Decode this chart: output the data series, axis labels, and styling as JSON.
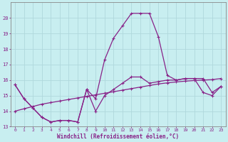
{
  "xlabel": "Windchill (Refroidissement éolien,°C)",
  "background_color": "#c8eef0",
  "grid_color": "#b0d8dc",
  "line_color": "#882288",
  "x_values": [
    0,
    1,
    2,
    3,
    4,
    5,
    6,
    7,
    8,
    9,
    10,
    11,
    12,
    13,
    14,
    15,
    16,
    17,
    18,
    19,
    20,
    21,
    22,
    23
  ],
  "line1": [
    15.7,
    14.8,
    14.2,
    13.6,
    13.3,
    13.4,
    13.4,
    13.3,
    15.4,
    14.0,
    15.0,
    15.4,
    15.8,
    16.2,
    16.2,
    15.8,
    15.9,
    16.0,
    16.0,
    16.1,
    16.1,
    15.2,
    15.0,
    15.6
  ],
  "line2": [
    15.7,
    14.8,
    14.2,
    13.6,
    13.3,
    13.4,
    13.4,
    13.3,
    15.4,
    14.8,
    17.3,
    18.7,
    19.5,
    20.3,
    20.3,
    20.3,
    18.8,
    16.3,
    16.0,
    16.1,
    16.1,
    16.1,
    15.2,
    15.6
  ],
  "line3": [
    14.0,
    14.15,
    14.3,
    14.45,
    14.55,
    14.65,
    14.75,
    14.85,
    14.95,
    15.05,
    15.15,
    15.25,
    15.35,
    15.45,
    15.55,
    15.65,
    15.75,
    15.82,
    15.88,
    15.93,
    15.97,
    16.0,
    16.03,
    16.1
  ],
  "ylim": [
    13,
    21
  ],
  "xlim": [
    -0.5,
    23.5
  ],
  "yticks": [
    13,
    14,
    15,
    16,
    17,
    18,
    19,
    20
  ],
  "xticks": [
    0,
    1,
    2,
    3,
    4,
    5,
    6,
    7,
    8,
    9,
    10,
    11,
    12,
    13,
    14,
    15,
    16,
    17,
    18,
    19,
    20,
    21,
    22,
    23
  ],
  "figsize": [
    3.2,
    2.0
  ],
  "dpi": 100
}
